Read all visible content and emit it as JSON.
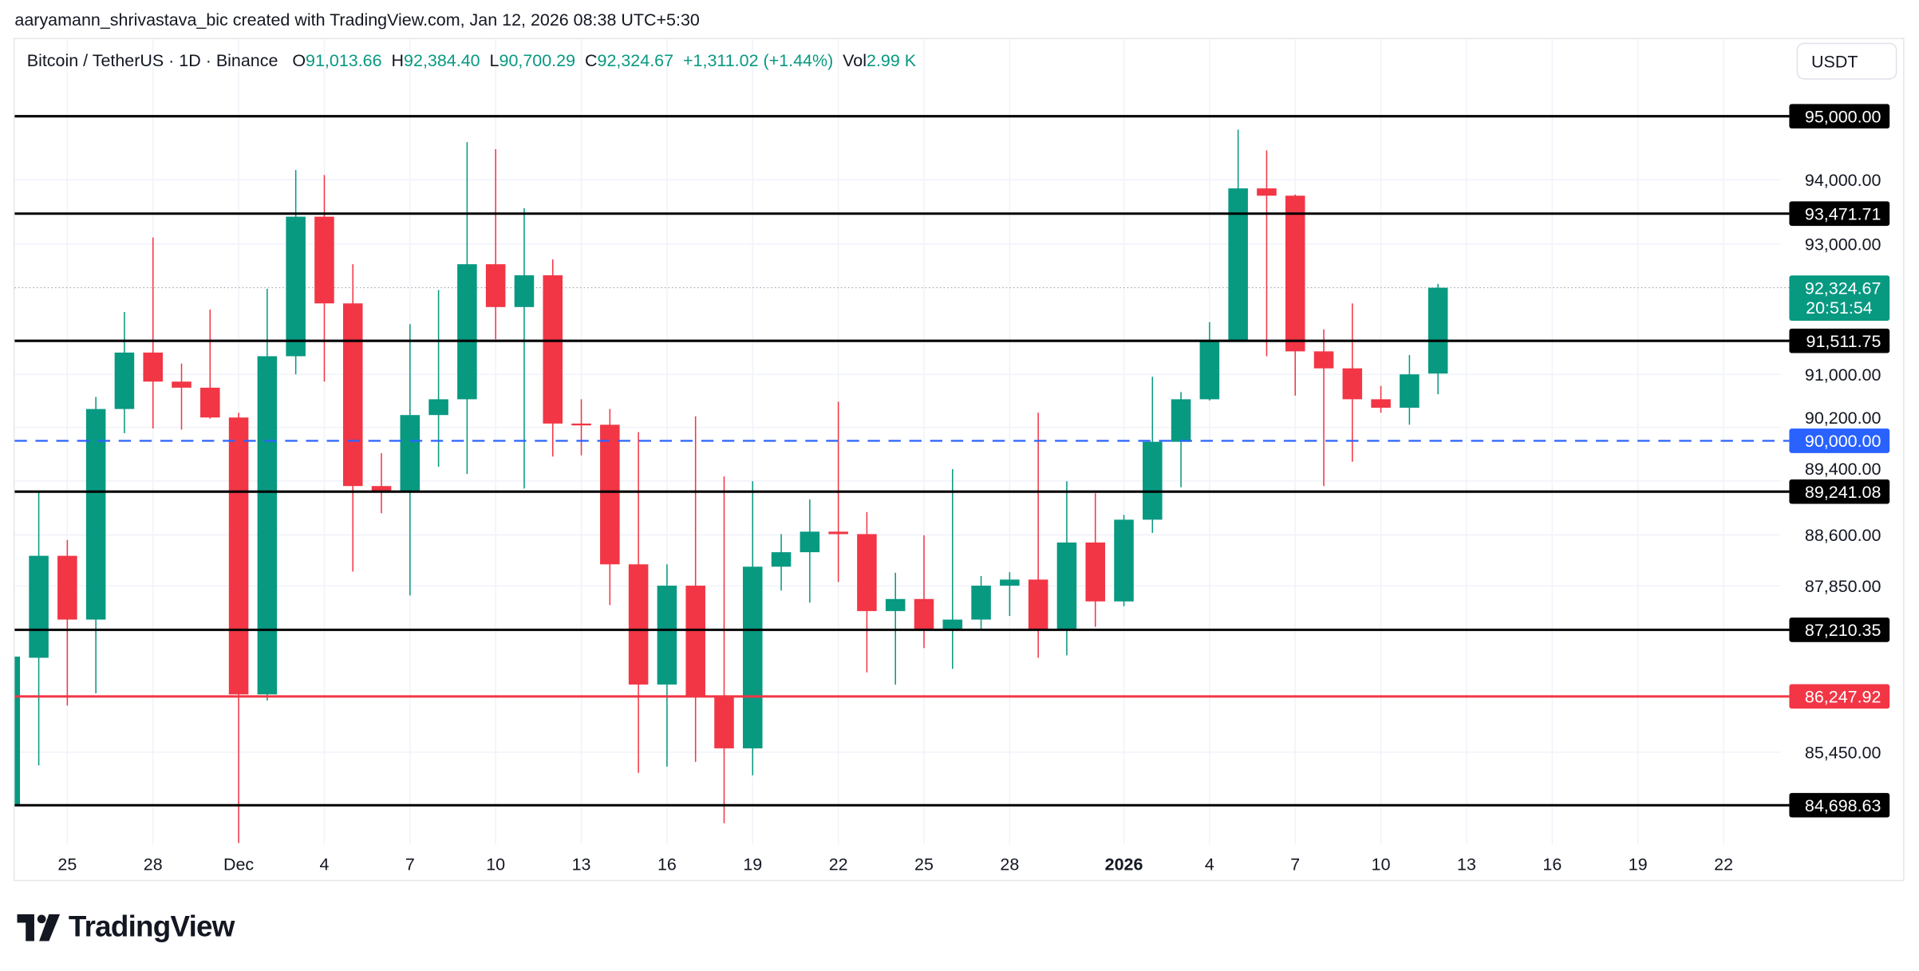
{
  "credit": "aaryamann_shrivastava_bic created with TradingView.com, Jan 12, 2026 08:38 UTC+5:30",
  "legend": {
    "symbol": "Bitcoin / TetherUS · 1D · Binance",
    "o_label": "O",
    "o": "91,013.66",
    "h_label": "H",
    "h": "92,384.40",
    "l_label": "L",
    "l": "90,700.29",
    "c_label": "C",
    "c": "92,324.67",
    "change": "+1,311.02 (+1.44%)",
    "vol_label": "Vol",
    "vol": "2.99 K"
  },
  "currency_button": "USDT",
  "logo_text": "TradingView",
  "colors": {
    "up": "#089981",
    "down": "#f23645",
    "level": "#000000",
    "support_red": "#f23645",
    "dashed_blue": "#2962ff",
    "grid": "#f0f3fa"
  },
  "chart_data": {
    "type": "candlestick",
    "title": "Bitcoin / TetherUS · 1D · Binance",
    "yscale": "log",
    "ylim": [
      84200,
      95700
    ],
    "xlim": [
      "2025-11-23",
      "2026-01-23"
    ],
    "grid": true,
    "x_ticks": [
      {
        "date": "2025-11-25",
        "label": "25"
      },
      {
        "date": "2025-11-28",
        "label": "28"
      },
      {
        "date": "2025-12-01",
        "label": "Dec"
      },
      {
        "date": "2025-12-04",
        "label": "4"
      },
      {
        "date": "2025-12-07",
        "label": "7"
      },
      {
        "date": "2025-12-10",
        "label": "10"
      },
      {
        "date": "2025-12-13",
        "label": "13"
      },
      {
        "date": "2025-12-16",
        "label": "16"
      },
      {
        "date": "2025-12-19",
        "label": "19"
      },
      {
        "date": "2025-12-22",
        "label": "22"
      },
      {
        "date": "2025-12-25",
        "label": "25"
      },
      {
        "date": "2025-12-28",
        "label": "28"
      },
      {
        "date": "2026-01-01",
        "label": "2026",
        "bold": true
      },
      {
        "date": "2026-01-04",
        "label": "4"
      },
      {
        "date": "2026-01-07",
        "label": "7"
      },
      {
        "date": "2026-01-10",
        "label": "10"
      },
      {
        "date": "2026-01-13",
        "label": "13"
      },
      {
        "date": "2026-01-16",
        "label": "16"
      },
      {
        "date": "2026-01-19",
        "label": "19"
      },
      {
        "date": "2026-01-22",
        "label": "22"
      }
    ],
    "y_ticks": [
      {
        "value": 94000,
        "label": "94,000.00"
      },
      {
        "value": 93000,
        "label": "93,000.00"
      },
      {
        "value": 91000,
        "label": "91,000.00"
      },
      {
        "value": 90200,
        "label": "90,200.00"
      },
      {
        "value": 89400,
        "label": "89,400.00"
      },
      {
        "value": 88600,
        "label": "88,600.00"
      },
      {
        "value": 87850,
        "label": "87,850.00"
      },
      {
        "value": 85450,
        "label": "85,450.00"
      }
    ],
    "levels": [
      {
        "value": 95000,
        "label": "95,000.00",
        "style": "solid",
        "color": "#000000"
      },
      {
        "value": 93471.71,
        "label": "93,471.71",
        "style": "solid",
        "color": "#000000"
      },
      {
        "value": 91511.75,
        "label": "91,511.75",
        "style": "solid",
        "color": "#000000"
      },
      {
        "value": 90000,
        "label": "90,000.00",
        "style": "dashed",
        "color": "#2962ff"
      },
      {
        "value": 89241.08,
        "label": "89,241.08",
        "style": "solid",
        "color": "#000000"
      },
      {
        "value": 87210.35,
        "label": "87,210.35",
        "style": "solid",
        "color": "#000000"
      },
      {
        "value": 86247.92,
        "label": "86,247.92",
        "style": "solid",
        "color": "#f23645"
      },
      {
        "value": 84698.63,
        "label": "84,698.63",
        "style": "solid",
        "color": "#000000"
      }
    ],
    "last_price": {
      "value": 92324.67,
      "label": "92,324.67",
      "countdown": "20:51:54"
    },
    "candles": [
      {
        "date": "2025-11-23",
        "o": 84690,
        "h": 86822,
        "l": 84690,
        "c": 86822
      },
      {
        "date": "2025-11-24",
        "o": 86805,
        "h": 89234,
        "l": 85261,
        "c": 88292
      },
      {
        "date": "2025-11-25",
        "o": 88292,
        "h": 88524,
        "l": 86118,
        "c": 87359
      },
      {
        "date": "2025-11-26",
        "o": 87359,
        "h": 90660,
        "l": 86294,
        "c": 90478
      },
      {
        "date": "2025-11-27",
        "o": 90478,
        "h": 91953,
        "l": 90113,
        "c": 91333
      },
      {
        "date": "2025-11-28",
        "o": 91333,
        "h": 93101,
        "l": 90186,
        "c": 90892
      },
      {
        "date": "2025-11-29",
        "o": 90892,
        "h": 91166,
        "l": 90168,
        "c": 90800
      },
      {
        "date": "2025-11-30",
        "o": 90800,
        "h": 91990,
        "l": 90332,
        "c": 90350
      },
      {
        "date": "2025-12-01",
        "o": 90350,
        "h": 90423,
        "l": 84168,
        "c": 86277
      },
      {
        "date": "2025-12-02",
        "o": 86277,
        "h": 92309,
        "l": 86189,
        "c": 91277
      },
      {
        "date": "2025-12-03",
        "o": 91277,
        "h": 94153,
        "l": 91002,
        "c": 93424
      },
      {
        "date": "2025-12-04",
        "o": 93424,
        "h": 94075,
        "l": 90892,
        "c": 92084
      },
      {
        "date": "2025-12-05",
        "o": 92084,
        "h": 92687,
        "l": 88060,
        "c": 89324
      },
      {
        "date": "2025-12-06",
        "o": 89324,
        "h": 89815,
        "l": 88920,
        "c": 89234
      },
      {
        "date": "2025-12-07",
        "o": 89234,
        "h": 91766,
        "l": 87712,
        "c": 90387
      },
      {
        "date": "2025-12-08",
        "o": 90387,
        "h": 92290,
        "l": 89612,
        "c": 90625
      },
      {
        "date": "2025-12-09",
        "o": 90625,
        "h": 94591,
        "l": 89504,
        "c": 92687
      },
      {
        "date": "2025-12-10",
        "o": 92687,
        "h": 94480,
        "l": 91536,
        "c": 92028
      },
      {
        "date": "2025-12-11",
        "o": 92028,
        "h": 93557,
        "l": 89288,
        "c": 92516
      },
      {
        "date": "2025-12-12",
        "o": 92516,
        "h": 92762,
        "l": 89764,
        "c": 90259
      },
      {
        "date": "2025-12-13",
        "o": 90259,
        "h": 90625,
        "l": 89782,
        "c": 90241
      },
      {
        "date": "2025-12-14",
        "o": 90241,
        "h": 90478,
        "l": 87571,
        "c": 88167
      },
      {
        "date": "2025-12-15",
        "o": 88167,
        "h": 90131,
        "l": 85157,
        "c": 86419
      },
      {
        "date": "2025-12-16",
        "o": 86419,
        "h": 88167,
        "l": 85244,
        "c": 87854
      },
      {
        "date": "2025-12-17",
        "o": 87854,
        "h": 90368,
        "l": 85313,
        "c": 86244
      },
      {
        "date": "2025-12-18",
        "o": 86244,
        "h": 89468,
        "l": 84445,
        "c": 85505
      },
      {
        "date": "2025-12-19",
        "o": 85505,
        "h": 89396,
        "l": 85122,
        "c": 88132
      },
      {
        "date": "2025-12-20",
        "o": 88132,
        "h": 88612,
        "l": 87783,
        "c": 88345
      },
      {
        "date": "2025-12-21",
        "o": 88345,
        "h": 89126,
        "l": 87606,
        "c": 88648
      },
      {
        "date": "2025-12-22",
        "o": 88648,
        "h": 90588,
        "l": 87907,
        "c": 88612
      },
      {
        "date": "2025-12-23",
        "o": 88612,
        "h": 88938,
        "l": 86594,
        "c": 87483
      },
      {
        "date": "2025-12-24",
        "o": 87483,
        "h": 88043,
        "l": 86419,
        "c": 87659
      },
      {
        "date": "2025-12-25",
        "o": 87659,
        "h": 88594,
        "l": 86946,
        "c": 87219
      },
      {
        "date": "2025-12-26",
        "o": 87219,
        "h": 89576,
        "l": 86646,
        "c": 87359
      },
      {
        "date": "2025-12-27",
        "o": 87359,
        "h": 87996,
        "l": 87219,
        "c": 87854
      },
      {
        "date": "2025-12-28",
        "o": 87854,
        "h": 88052,
        "l": 87412,
        "c": 87943
      },
      {
        "date": "2025-12-29",
        "o": 87943,
        "h": 90423,
        "l": 86805,
        "c": 87219
      },
      {
        "date": "2025-12-30",
        "o": 87219,
        "h": 89396,
        "l": 86840,
        "c": 88488
      },
      {
        "date": "2025-12-31",
        "o": 88488,
        "h": 89216,
        "l": 87254,
        "c": 87624
      },
      {
        "date": "2026-01-01",
        "o": 87624,
        "h": 88896,
        "l": 87553,
        "c": 88825
      },
      {
        "date": "2026-01-02",
        "o": 88825,
        "h": 90965,
        "l": 88630,
        "c": 89985
      },
      {
        "date": "2026-01-03",
        "o": 89985,
        "h": 90735,
        "l": 89306,
        "c": 90625
      },
      {
        "date": "2026-01-04",
        "o": 90625,
        "h": 91798,
        "l": 90606,
        "c": 91518
      },
      {
        "date": "2026-01-05",
        "o": 91518,
        "h": 94788,
        "l": 91499,
        "c": 93865
      },
      {
        "date": "2026-01-06",
        "o": 93865,
        "h": 94461,
        "l": 91277,
        "c": 93751
      },
      {
        "date": "2026-01-07",
        "o": 93751,
        "h": 93770,
        "l": 90680,
        "c": 91351
      },
      {
        "date": "2026-01-08",
        "o": 91351,
        "h": 91686,
        "l": 89324,
        "c": 91093
      },
      {
        "date": "2026-01-09",
        "o": 91093,
        "h": 92084,
        "l": 89686,
        "c": 90625
      },
      {
        "date": "2026-01-10",
        "o": 90625,
        "h": 90827,
        "l": 90423,
        "c": 90497
      },
      {
        "date": "2026-01-11",
        "o": 90497,
        "h": 91296,
        "l": 90241,
        "c": 91002
      },
      {
        "date": "2026-01-12",
        "o": 91013.66,
        "h": 92384.4,
        "l": 90700.29,
        "c": 92324.67
      }
    ]
  }
}
